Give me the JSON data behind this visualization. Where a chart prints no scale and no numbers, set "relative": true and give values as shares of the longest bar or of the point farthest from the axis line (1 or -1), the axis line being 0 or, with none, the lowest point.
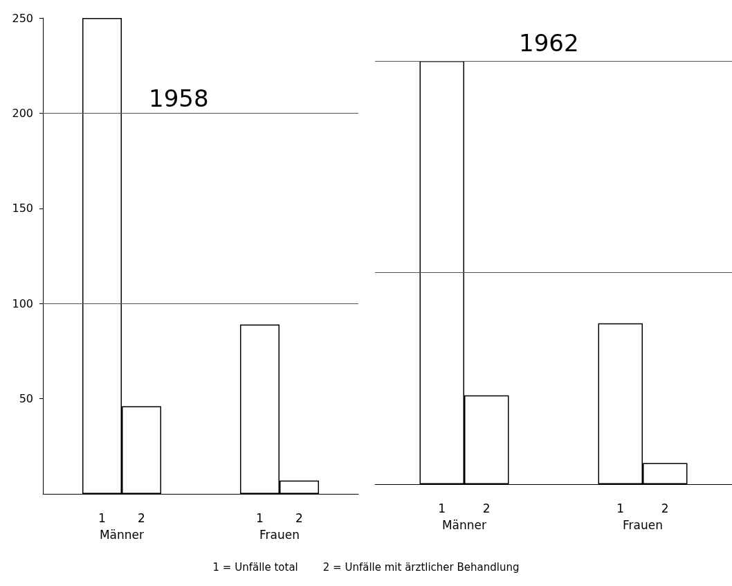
{
  "chart_data": [
    {
      "type": "bar",
      "title": "1958",
      "categories": [
        null,
        "1",
        "2",
        null,
        null,
        "1",
        "2",
        null
      ],
      "values": [
        null,
        250,
        46,
        null,
        null,
        89,
        7,
        null
      ],
      "color": "#ffffff",
      "ylim": [
        0,
        250
      ],
      "yticks": [
        50,
        100,
        150,
        200,
        250
      ],
      "grid": false,
      "ref_lines": [
        {
          "axis": "y",
          "value": 100
        },
        {
          "axis": "y",
          "value": 200
        }
      ],
      "annotations": [
        "Männer",
        "Frauen",
        "1 = Unfälle total",
        "2 = Unfälle mit ärztlicher Behandlung"
      ]
    },
    {
      "type": "bar",
      "title": "1962",
      "relative": true,
      "categories": [
        null,
        "1",
        "2",
        null,
        null,
        "1",
        "2",
        null
      ],
      "values": [
        null,
        1,
        0.21,
        null,
        null,
        0.38,
        0.05,
        null
      ],
      "color": "#ffffff",
      "grid": false,
      "ref_lines": [
        {
          "axis": "y",
          "value": 0.5
        },
        {
          "axis": "y",
          "value": 1
        }
      ],
      "annotations": [
        "Männer",
        "Frauen"
      ]
    }
  ]
}
